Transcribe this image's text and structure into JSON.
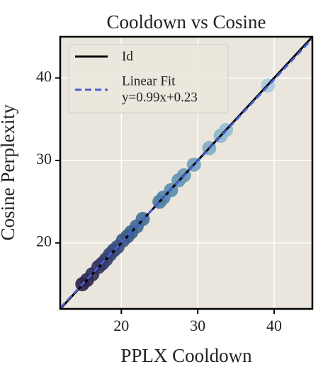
{
  "chart_data": {
    "type": "scatter",
    "title": "Cooldown vs Cosine",
    "x_label": "PPLX Cooldown",
    "y_label": "Cosine Perplexity",
    "xlim": [
      12,
      45
    ],
    "ylim": [
      12,
      45
    ],
    "xticks": [
      20,
      30,
      40
    ],
    "yticks": [
      20,
      30,
      40
    ],
    "grid": true,
    "legend": "upper left",
    "points": {
      "x": [
        14.9,
        15.5,
        16.2,
        17.0,
        17.5,
        18.0,
        18.5,
        19.0,
        19.5,
        20.2,
        20.8,
        21.3,
        22.0,
        22.8,
        25.0,
        25.5,
        26.5,
        27.5,
        28.2,
        29.5,
        31.5,
        33.0,
        33.7,
        39.2
      ],
      "values": [
        15.0,
        15.5,
        16.2,
        17.1,
        17.5,
        18.0,
        18.6,
        19.1,
        19.5,
        20.3,
        20.8,
        21.3,
        22.0,
        22.9,
        25.0,
        25.5,
        26.4,
        27.6,
        28.2,
        29.5,
        31.5,
        33.0,
        33.7,
        39.1
      ],
      "colors": [
        "#2a1e48",
        "#2e2550",
        "#322c59",
        "#343261",
        "#363867",
        "#373e6d",
        "#384473",
        "#384a79",
        "#39507e",
        "#3a5684",
        "#3b5c89",
        "#3c628e",
        "#3e6893",
        "#416f98",
        "#4a7ca0",
        "#5083a5",
        "#578aab",
        "#6092b0",
        "#6899b6",
        "#72a1bc",
        "#80adc4",
        "#8cb6ca",
        "#94bccf",
        "#a8cbdc"
      ]
    },
    "series": [
      {
        "name": "Id",
        "color": "#000000",
        "style": "solid",
        "x": [
          12,
          45
        ],
        "values": [
          12,
          45
        ]
      },
      {
        "name": "Linear Fit",
        "equation": "y=0.99x+0.23",
        "color": "#4a5fd6",
        "style": "dashed",
        "x": [
          12,
          45
        ],
        "values": [
          12.11,
          44.78
        ]
      }
    ]
  }
}
